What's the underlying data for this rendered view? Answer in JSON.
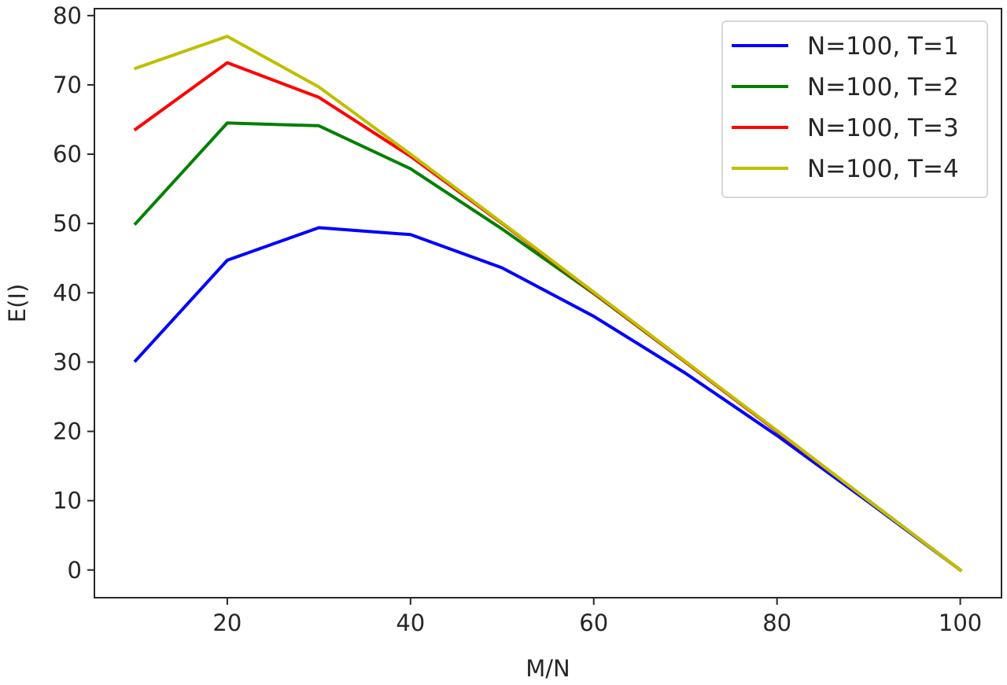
{
  "chart_data": {
    "type": "line",
    "xlabel": "M/N",
    "ylabel": "E(I)",
    "xlim": [
      5.5,
      104.5
    ],
    "ylim": [
      -4,
      81
    ],
    "xticks": [
      20,
      40,
      60,
      80,
      100
    ],
    "yticks": [
      0,
      10,
      20,
      30,
      40,
      50,
      60,
      70,
      80
    ],
    "grid": false,
    "legend_position": "top-right",
    "x": [
      10,
      20,
      30,
      40,
      50,
      60,
      70,
      80,
      90,
      100
    ],
    "series": [
      {
        "name": "N=100, T=1",
        "color": "#0000ff",
        "values": [
          30.2,
          44.7,
          49.4,
          48.4,
          43.6,
          36.6,
          28.4,
          19.4,
          9.8,
          0
        ]
      },
      {
        "name": "N=100, T=2",
        "color": "#008000",
        "values": [
          50.0,
          64.5,
          64.1,
          57.9,
          49.2,
          39.9,
          30.0,
          20.0,
          10.0,
          0
        ]
      },
      {
        "name": "N=100, T=3",
        "color": "#ff0000",
        "values": [
          63.6,
          73.2,
          68.2,
          59.7,
          50.0,
          40.0,
          30.0,
          20.0,
          10.0,
          0
        ]
      },
      {
        "name": "N=100, T=4",
        "color": "#bfbf00",
        "values": [
          72.4,
          77.0,
          69.7,
          60.0,
          50.1,
          40.1,
          30.1,
          20.1,
          10.0,
          0
        ]
      }
    ]
  }
}
